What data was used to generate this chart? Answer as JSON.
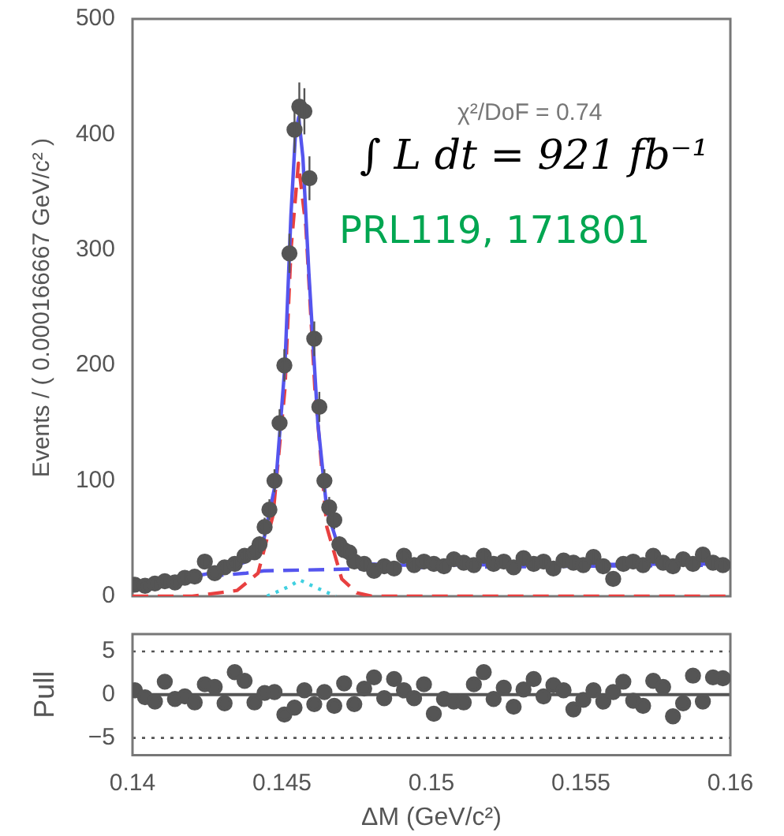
{
  "chart_data": [
    {
      "type": "scatter",
      "ylabel": "Events / ( 0.000166667 GeV/c² )",
      "xlim": [
        0.14,
        0.16
      ],
      "xticks": [
        0.14,
        0.145,
        0.15,
        0.155,
        0.16
      ],
      "ylim": [
        0,
        500
      ],
      "yticks": [
        0,
        100,
        200,
        300,
        400,
        500
      ],
      "tick_labels": "y",
      "annotations": [
        "χ²/DoF = 0.74",
        "∫ L dt = 921 fb⁻¹",
        "PRL119, 171801"
      ],
      "series": [
        {
          "type": "scatter",
          "color": "#555555",
          "marker": "circle",
          "x": [
            0.14008,
            0.14042,
            0.14075,
            0.14108,
            0.14142,
            0.14175,
            0.14208,
            0.14242,
            0.14275,
            0.14308,
            0.14342,
            0.14375,
            0.14408,
            0.14425,
            0.14442,
            0.14458,
            0.14475,
            0.14492,
            0.14508,
            0.14525,
            0.14542,
            0.14558,
            0.14575,
            0.14592,
            0.14608,
            0.14625,
            0.14642,
            0.14658,
            0.14675,
            0.14692,
            0.14708,
            0.14725,
            0.14742,
            0.14775,
            0.14808,
            0.14842,
            0.14875,
            0.14908,
            0.14942,
            0.14975,
            0.15008,
            0.15042,
            0.15075,
            0.15108,
            0.15142,
            0.15175,
            0.15208,
            0.15242,
            0.15275,
            0.15308,
            0.15342,
            0.15375,
            0.15408,
            0.15442,
            0.15475,
            0.15508,
            0.15542,
            0.15575,
            0.15608,
            0.15642,
            0.15675,
            0.15708,
            0.15742,
            0.15775,
            0.15808,
            0.15842,
            0.15875,
            0.15908,
            0.15942,
            0.15975
          ],
          "values": [
            10,
            9,
            11,
            13,
            12,
            16,
            17,
            30,
            20,
            25,
            28,
            35,
            38,
            45,
            60,
            75,
            100,
            150,
            200,
            297,
            404,
            424,
            420,
            362,
            223,
            164,
            100,
            77,
            66,
            45,
            40,
            38,
            30,
            28,
            22,
            26,
            24,
            35,
            27,
            30,
            28,
            26,
            32,
            29,
            27,
            35,
            28,
            30,
            25,
            33,
            28,
            30,
            24,
            31,
            29,
            27,
            34,
            26,
            15,
            28,
            30,
            27,
            35,
            29,
            26,
            32,
            28,
            36,
            29,
            27
          ],
          "errors": [
            3,
            3,
            3,
            4,
            3,
            4,
            4,
            5,
            4,
            5,
            5,
            6,
            6,
            7,
            8,
            9,
            10,
            12,
            14,
            17,
            20,
            21,
            20,
            19,
            15,
            13,
            10,
            9,
            8,
            7,
            6,
            6,
            5,
            5,
            5,
            5,
            5,
            6,
            5,
            5,
            5,
            5,
            6,
            5,
            5,
            6,
            5,
            5,
            5,
            6,
            5,
            5,
            5,
            6,
            5,
            5,
            6,
            5,
            4,
            5,
            5,
            5,
            6,
            5,
            5,
            6,
            5,
            6,
            5,
            5
          ]
        },
        {
          "type": "line",
          "color": "#5555ee",
          "line_style": "solid",
          "x": [
            0.14,
            0.142,
            0.143,
            0.1438,
            0.1444,
            0.1448,
            0.1451,
            0.1453,
            0.14545,
            0.14556,
            0.1457,
            0.1459,
            0.1462,
            0.1465,
            0.1468,
            0.1472,
            0.1478,
            0.149,
            0.16
          ],
          "values": [
            10,
            17,
            22,
            30,
            50,
            100,
            200,
            330,
            400,
            415,
            380,
            280,
            150,
            75,
            50,
            38,
            28,
            27,
            28
          ]
        },
        {
          "type": "line",
          "color": "#e84040",
          "line_style": "dashed",
          "x": [
            0.14,
            0.142,
            0.1435,
            0.1442,
            0.1447,
            0.1451,
            0.1453,
            0.14555,
            0.1458,
            0.1461,
            0.1465,
            0.147,
            0.1475,
            0.148,
            0.16
          ],
          "values": [
            0,
            0,
            5,
            20,
            70,
            180,
            300,
            375,
            320,
            180,
            60,
            15,
            3,
            0,
            0
          ]
        },
        {
          "type": "line",
          "color": "#5555ee",
          "line_style": "dashed",
          "x": [
            0.14,
            0.142,
            0.1438,
            0.1444,
            0.15,
            0.16
          ],
          "values": [
            10,
            16,
            20,
            22,
            25,
            27
          ]
        },
        {
          "type": "line",
          "color": "#40d0e0",
          "line_style": "dotted",
          "x": [
            0.1445,
            0.1452,
            0.1456,
            0.1461,
            0.1468
          ],
          "values": [
            0,
            8,
            14,
            8,
            0
          ]
        }
      ]
    },
    {
      "type": "scatter",
      "xlabel": "ΔM (GeV/c²)",
      "ylabel": "Pull",
      "xlim": [
        0.14,
        0.16
      ],
      "xticks": [
        0.14,
        0.145,
        0.15,
        0.155,
        0.16
      ],
      "ylim": [
        -7,
        7
      ],
      "yticks": [
        -5,
        0,
        5
      ],
      "ref_lines": [
        {
          "axis": "y",
          "value": 5,
          "line_style": "dotted",
          "color": "#555555"
        },
        {
          "axis": "y",
          "value": 0,
          "line_style": "solid",
          "color": "#555555"
        },
        {
          "axis": "y",
          "value": -5,
          "line_style": "dotted",
          "color": "#555555"
        }
      ],
      "series": [
        {
          "type": "scatter",
          "color": "#555555",
          "marker": "circle",
          "x": [
            0.14008,
            0.14042,
            0.14075,
            0.14108,
            0.14142,
            0.14175,
            0.14208,
            0.14242,
            0.14275,
            0.14308,
            0.14342,
            0.14375,
            0.14408,
            0.14442,
            0.14475,
            0.14508,
            0.14542,
            0.14575,
            0.14608,
            0.14642,
            0.14675,
            0.14708,
            0.14742,
            0.14775,
            0.14808,
            0.14842,
            0.14875,
            0.14908,
            0.14942,
            0.14975,
            0.15008,
            0.15042,
            0.15075,
            0.15108,
            0.15142,
            0.15175,
            0.15208,
            0.15242,
            0.15275,
            0.15308,
            0.15342,
            0.15375,
            0.15408,
            0.15442,
            0.15475,
            0.15508,
            0.15542,
            0.15575,
            0.15608,
            0.15642,
            0.15675,
            0.15708,
            0.15742,
            0.15775,
            0.15808,
            0.15842,
            0.15875,
            0.15908,
            0.15942,
            0.15975
          ],
          "values": [
            0.5,
            -0.3,
            -0.8,
            1.5,
            -0.5,
            -0.2,
            -0.9,
            1.2,
            0.9,
            -1,
            2.6,
            1.6,
            -0.9,
            0.2,
            0.3,
            -2.3,
            -1.5,
            0.5,
            -1.1,
            0.3,
            -1.3,
            1.3,
            -1.1,
            0.7,
            2,
            -0.4,
            1.8,
            0.5,
            -0.4,
            1.2,
            -2.2,
            -0.5,
            -0.8,
            -0.9,
            1.2,
            2.6,
            -0.5,
            0.8,
            -1.4,
            0.6,
            1.8,
            -0.2,
            1.1,
            0.5,
            -1.7,
            -0.6,
            0.5,
            -0.8,
            0.3,
            1.5,
            -0.7,
            -1.3,
            1.6,
            0.9,
            -2.5,
            -1,
            2.2,
            -0.8,
            2,
            1.9
          ]
        }
      ]
    }
  ]
}
